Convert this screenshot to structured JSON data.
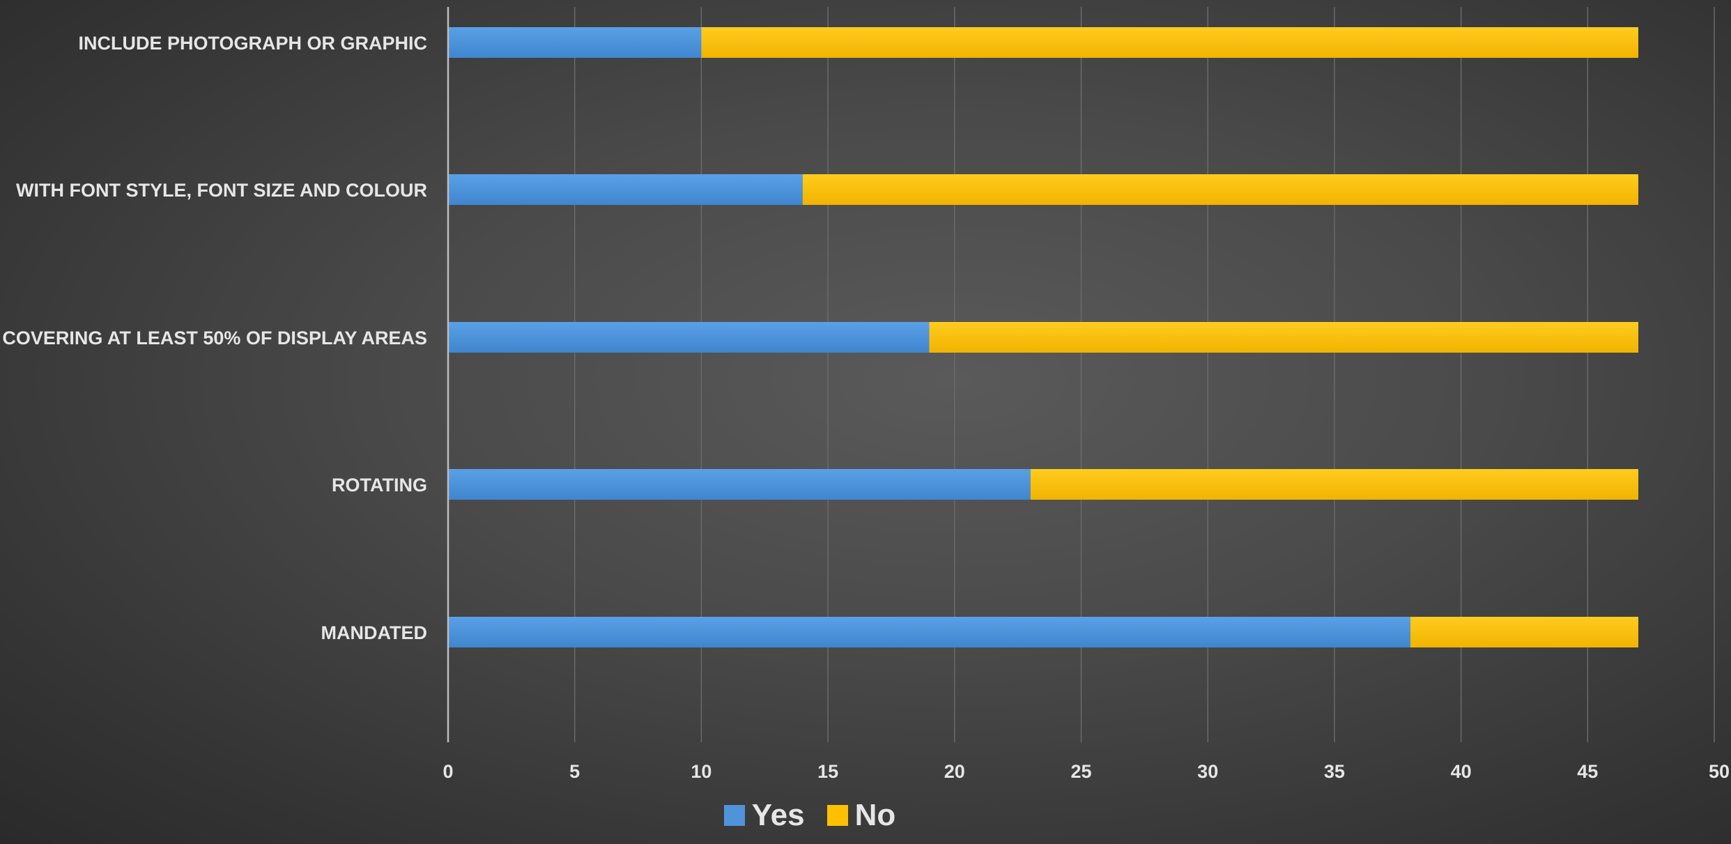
{
  "chart_data": {
    "type": "bar",
    "orientation": "horizontal",
    "stacked": true,
    "categories": [
      "INCLUDE PHOTOGRAPH OR GRAPHIC",
      "WITH FONT STYLE, FONT SIZE AND COLOUR",
      "COVERING AT LEAST 50% OF DISPLAY AREAS",
      "ROTATING",
      "MANDATED"
    ],
    "series": [
      {
        "name": "Yes",
        "color": "#4f94d9",
        "values": [
          10,
          14,
          19,
          23,
          38
        ]
      },
      {
        "name": "No",
        "color": "#ffc000",
        "values": [
          37,
          33,
          28,
          24,
          9
        ]
      }
    ],
    "title": "",
    "xlabel": "",
    "ylabel": "",
    "xlim": [
      0,
      50
    ],
    "x_ticks": [
      "0",
      "5",
      "10",
      "15",
      "20",
      "25",
      "30",
      "35",
      "40",
      "45",
      "50"
    ],
    "grid": "vertical",
    "legend_position": "bottom"
  }
}
